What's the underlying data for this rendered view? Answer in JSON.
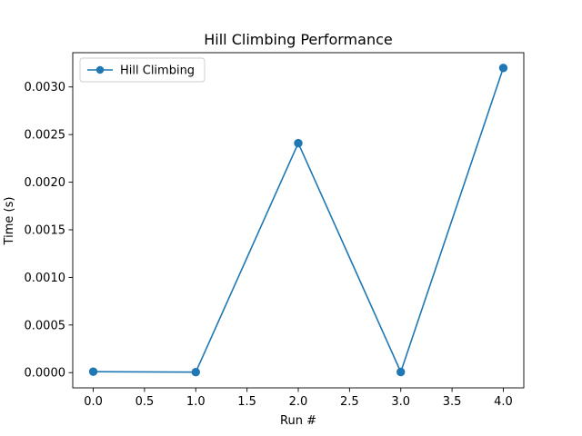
{
  "chart_data": {
    "type": "line",
    "title": "Hill Climbing Performance",
    "xlabel": "Run #",
    "ylabel": "Time (s)",
    "xlim": [
      -0.2,
      4.2
    ],
    "ylim": [
      -0.00016,
      0.00336
    ],
    "x_ticks": [
      0.0,
      0.5,
      1.0,
      1.5,
      2.0,
      2.5,
      3.0,
      3.5,
      4.0
    ],
    "x_tick_labels": [
      "0.0",
      "0.5",
      "1.0",
      "1.5",
      "2.0",
      "2.5",
      "3.0",
      "3.5",
      "4.0"
    ],
    "y_ticks": [
      0.0,
      0.0005,
      0.001,
      0.0015,
      0.002,
      0.0025,
      0.003
    ],
    "y_tick_labels": [
      "0.0000",
      "0.0005",
      "0.0010",
      "0.0015",
      "0.0020",
      "0.0025",
      "0.0030"
    ],
    "grid": false,
    "legend_position": "top-left",
    "series": [
      {
        "name": "Hill Climbing",
        "color": "#1f77b4",
        "marker": "circle",
        "x": [
          0,
          1,
          2,
          3,
          4
        ],
        "values": [
          1e-05,
          5e-06,
          0.00241,
          7e-06,
          0.0032
        ]
      }
    ]
  }
}
